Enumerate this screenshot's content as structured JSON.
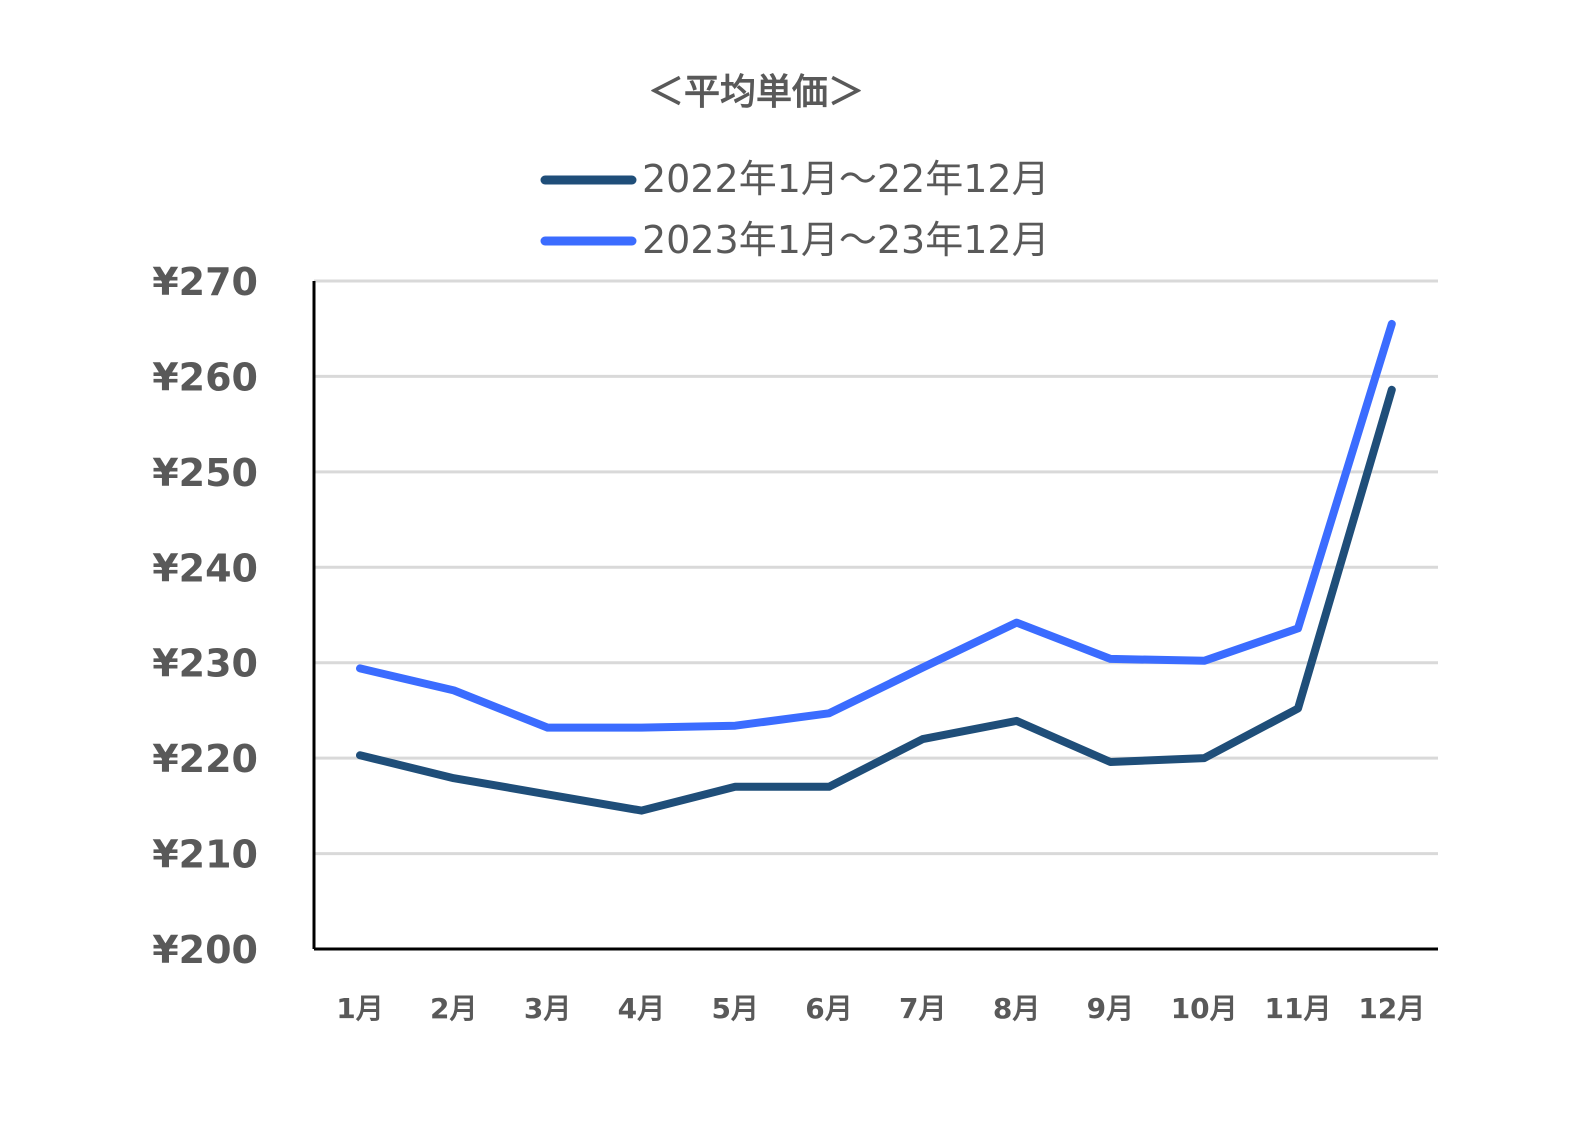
{
  "chart_data": {
    "type": "line",
    "title": "＜平均単価＞",
    "xlabel": "",
    "ylabel": "",
    "categories": [
      "1月",
      "2月",
      "3月",
      "4月",
      "5月",
      "6月",
      "7月",
      "8月",
      "9月",
      "10月",
      "11月",
      "12月"
    ],
    "series": [
      {
        "name": "2022年1月～22年12月",
        "color": "#1f4e79",
        "values": [
          220.3,
          217.9,
          216.2,
          214.5,
          217.0,
          217.0,
          222.0,
          223.9,
          219.6,
          220.0,
          225.2,
          258.6
        ]
      },
      {
        "name": "2023年1月～23年12月",
        "color": "#3b6cff",
        "values": [
          229.4,
          227.1,
          223.2,
          223.2,
          223.4,
          224.7,
          229.5,
          234.2,
          230.4,
          230.2,
          233.6,
          265.5
        ]
      }
    ],
    "ylim": [
      200,
      270
    ],
    "yticks": [
      200,
      210,
      220,
      230,
      240,
      250,
      260,
      270
    ],
    "ytick_labels": [
      "¥200",
      "¥210",
      "¥220",
      "¥230",
      "¥240",
      "¥250",
      "¥260",
      "¥270"
    ],
    "grid": true,
    "legend_position": "top-center"
  }
}
